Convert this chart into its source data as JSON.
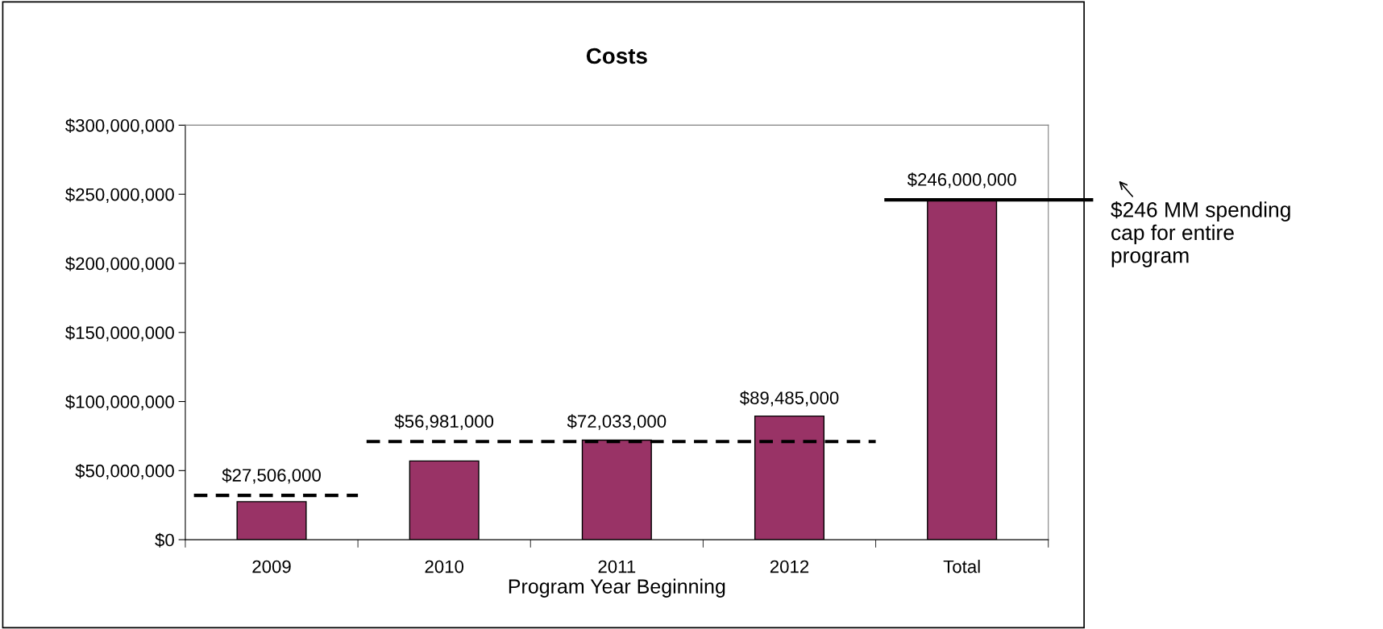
{
  "chart_data": {
    "type": "bar",
    "title": "Costs",
    "xlabel": "Program Year Beginning",
    "categories": [
      "2009",
      "2010",
      "2011",
      "2012",
      "Total"
    ],
    "series": [
      {
        "color": "#993366",
        "values": [
          27506000,
          56981000,
          72033000,
          89485000,
          246000000
        ],
        "value_labels": [
          "$27,506,000",
          "$56,981,000",
          "$72,033,000",
          "$89,485,000",
          "$246,000,000"
        ]
      }
    ],
    "ref_lines": [
      {
        "axis": "y",
        "value": 32000000,
        "color": "#000000",
        "line_style": "dashed"
      },
      {
        "axis": "y",
        "value": 71000000,
        "color": "#000000",
        "line_style": "dashed"
      },
      {
        "axis": "y",
        "value": 246000000,
        "color": "#000000",
        "line_style": "solid"
      }
    ],
    "ylim": [
      0,
      300000000
    ],
    "yticks": [
      {
        "value": 0,
        "label": "$0"
      },
      {
        "value": 50000000,
        "label": "$50,000,000"
      },
      {
        "value": 100000000,
        "label": "$100,000,000"
      },
      {
        "value": 150000000,
        "label": "$150,000,000"
      },
      {
        "value": 200000000,
        "label": "$200,000,000"
      },
      {
        "value": 250000000,
        "label": "$250,000,000"
      },
      {
        "value": 300000000,
        "label": "$300,000,000"
      }
    ],
    "annotations": [
      "$246 MM spending\ncap for entire\nprogram"
    ],
    "grid": false,
    "legend": false
  }
}
